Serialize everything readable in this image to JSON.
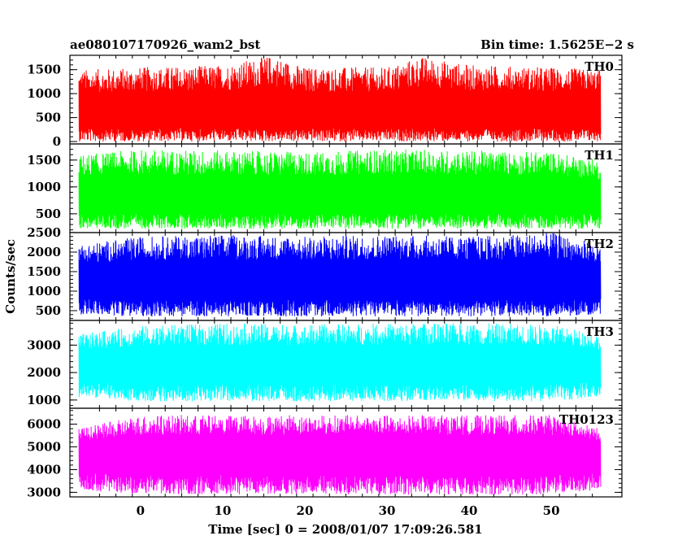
{
  "header": {
    "title": "ae080107170926_wam2_bst",
    "bin_time": "Bin time: 1.5625E−2 s"
  },
  "chart_data": {
    "type": "line",
    "title": "ae080107170926_wam2_bst",
    "xlabel": "Time [sec] 0 = 2008/01/07 17:09:26.581",
    "ylabel": "Counts/sec",
    "xlim": [
      -8.6,
      58.6
    ],
    "x_ticks": [
      0,
      10,
      20,
      30,
      40,
      50
    ],
    "x_tick_labels": [
      "0",
      "10",
      "20",
      "30",
      "40",
      "50"
    ],
    "data_x_range": [
      -7.5,
      56.0
    ],
    "bin_time_s": 0.015625,
    "grid": false,
    "panels": [
      {
        "name": "TH0",
        "color": "#ff0000",
        "ylim": [
          -50,
          1800
        ],
        "y_ticks": [
          0,
          500,
          1000,
          1500
        ],
        "y_tick_labels": [
          "0",
          "500",
          "1000",
          "1500"
        ],
        "values": [
          {
            "t": -7.5,
            "min": 0,
            "mean": 620,
            "max": 1500
          },
          {
            "t": 0,
            "min": 0,
            "mean": 620,
            "max": 1550
          },
          {
            "t": 10,
            "min": 0,
            "mean": 620,
            "max": 1600
          },
          {
            "t": 16,
            "min": 0,
            "mean": 650,
            "max": 1800
          },
          {
            "t": 20,
            "min": 0,
            "mean": 620,
            "max": 1550
          },
          {
            "t": 30,
            "min": 0,
            "mean": 620,
            "max": 1550
          },
          {
            "t": 34,
            "min": 0,
            "mean": 630,
            "max": 1780
          },
          {
            "t": 40,
            "min": 0,
            "mean": 620,
            "max": 1600
          },
          {
            "t": 50,
            "min": 0,
            "mean": 620,
            "max": 1550
          },
          {
            "t": 56,
            "min": 0,
            "mean": 620,
            "max": 1500
          }
        ]
      },
      {
        "name": "TH1",
        "color": "#00ff00",
        "ylim": [
          150,
          1800
        ],
        "y_ticks": [
          500,
          1000,
          1500
        ],
        "y_tick_labels": [
          "500",
          "1000",
          "1500"
        ],
        "values": [
          {
            "t": -7.5,
            "min": 220,
            "mean": 850,
            "max": 1600
          },
          {
            "t": 0,
            "min": 220,
            "mean": 850,
            "max": 1700
          },
          {
            "t": 10,
            "min": 220,
            "mean": 850,
            "max": 1680
          },
          {
            "t": 20,
            "min": 220,
            "mean": 850,
            "max": 1650
          },
          {
            "t": 30,
            "min": 220,
            "mean": 850,
            "max": 1700
          },
          {
            "t": 40,
            "min": 220,
            "mean": 850,
            "max": 1680
          },
          {
            "t": 50,
            "min": 220,
            "mean": 850,
            "max": 1650
          },
          {
            "t": 56,
            "min": 220,
            "mean": 850,
            "max": 1500
          }
        ]
      },
      {
        "name": "TH2",
        "color": "#0000ff",
        "ylim": [
          250,
          2500
        ],
        "y_ticks": [
          500,
          1000,
          1500,
          2000,
          2500
        ],
        "y_tick_labels": [
          "500",
          "1000",
          "1500",
          "2000",
          "2500"
        ],
        "values": [
          {
            "t": -7.5,
            "min": 400,
            "mean": 1300,
            "max": 2200
          },
          {
            "t": 0,
            "min": 350,
            "mean": 1300,
            "max": 2400
          },
          {
            "t": 10,
            "min": 350,
            "mean": 1300,
            "max": 2450
          },
          {
            "t": 20,
            "min": 350,
            "mean": 1300,
            "max": 2400
          },
          {
            "t": 30,
            "min": 350,
            "mean": 1300,
            "max": 2450
          },
          {
            "t": 40,
            "min": 350,
            "mean": 1300,
            "max": 2400
          },
          {
            "t": 50,
            "min": 350,
            "mean": 1300,
            "max": 2500
          },
          {
            "t": 56,
            "min": 400,
            "mean": 1300,
            "max": 2200
          }
        ]
      },
      {
        "name": "TH3",
        "color": "#00ffff",
        "ylim": [
          700,
          3900
        ],
        "y_ticks": [
          1000,
          2000,
          3000
        ],
        "y_tick_labels": [
          "1000",
          "2000",
          "3000"
        ],
        "values": [
          {
            "t": -7.5,
            "min": 1100,
            "mean": 2350,
            "max": 3400
          },
          {
            "t": 0,
            "min": 950,
            "mean": 2350,
            "max": 3700
          },
          {
            "t": 10,
            "min": 950,
            "mean": 2350,
            "max": 3800
          },
          {
            "t": 20,
            "min": 950,
            "mean": 2350,
            "max": 3750
          },
          {
            "t": 30,
            "min": 950,
            "mean": 2350,
            "max": 3800
          },
          {
            "t": 40,
            "min": 950,
            "mean": 2350,
            "max": 3800
          },
          {
            "t": 50,
            "min": 950,
            "mean": 2350,
            "max": 3750
          },
          {
            "t": 56,
            "min": 1100,
            "mean": 2350,
            "max": 3400
          }
        ]
      },
      {
        "name": "TH0123",
        "color": "#ff00ff",
        "ylim": [
          2800,
          6700
        ],
        "y_ticks": [
          3000,
          4000,
          5000,
          6000
        ],
        "y_tick_labels": [
          "3000",
          "4000",
          "5000",
          "6000"
        ],
        "values": [
          {
            "t": -7.5,
            "min": 3100,
            "mean": 4800,
            "max": 5800
          },
          {
            "t": 0,
            "min": 2900,
            "mean": 4800,
            "max": 6400
          },
          {
            "t": 10,
            "min": 2900,
            "mean": 4800,
            "max": 6400
          },
          {
            "t": 20,
            "min": 2900,
            "mean": 4800,
            "max": 6400
          },
          {
            "t": 30,
            "min": 2900,
            "mean": 4800,
            "max": 6400
          },
          {
            "t": 40,
            "min": 2900,
            "mean": 4800,
            "max": 6400
          },
          {
            "t": 50,
            "min": 2900,
            "mean": 4800,
            "max": 6400
          },
          {
            "t": 56,
            "min": 3100,
            "mean": 4800,
            "max": 5800
          }
        ]
      }
    ]
  }
}
